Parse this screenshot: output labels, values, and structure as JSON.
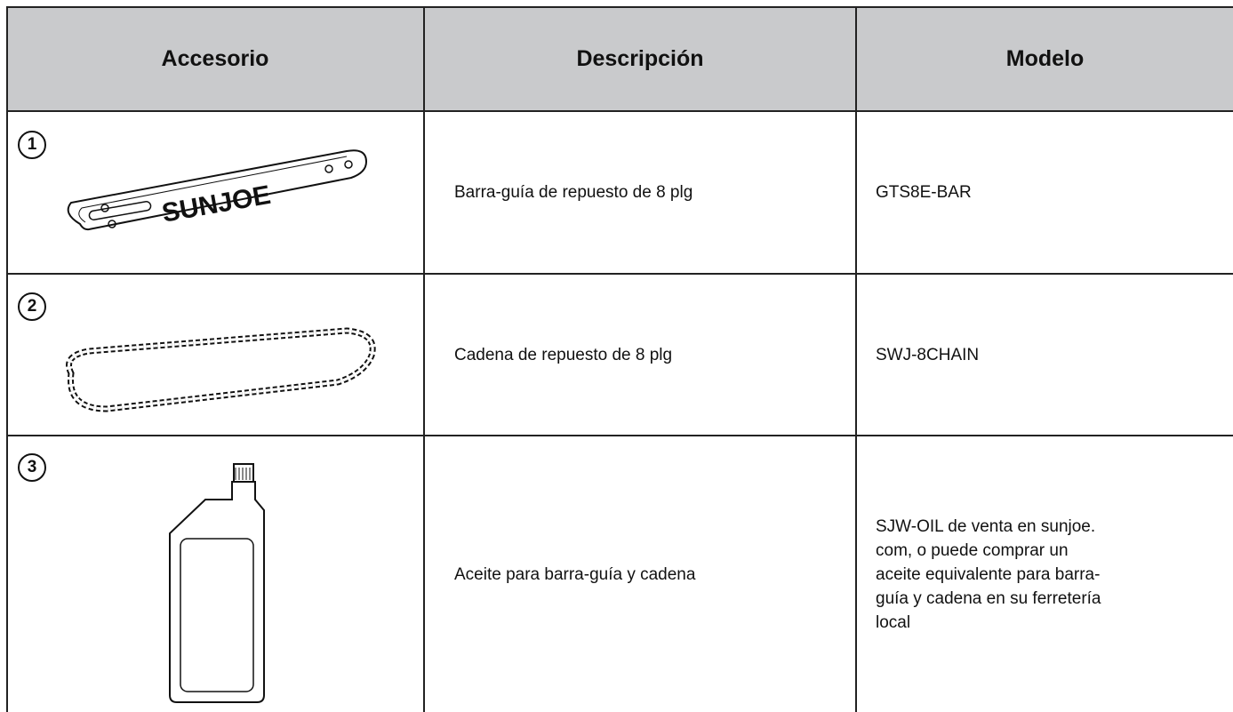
{
  "table": {
    "columns": [
      "Accesorio",
      "Descripción",
      "Modelo"
    ],
    "rows": [
      {
        "number": "1",
        "image_text": "SUNJOE",
        "description": "Barra-guía de repuesto de 8 plg",
        "model": "GTS8E-BAR"
      },
      {
        "number": "2",
        "description": "Cadena de repuesto de 8 plg",
        "model": "SWJ-8CHAIN"
      },
      {
        "number": "3",
        "description": "Aceite para barra-guía y cadena",
        "model": "SJW-OIL de venta en sunjoe.\ncom, o puede comprar un\naceite equivalente para barra-\nguía y cadena en su ferretería\nlocal"
      }
    ]
  }
}
